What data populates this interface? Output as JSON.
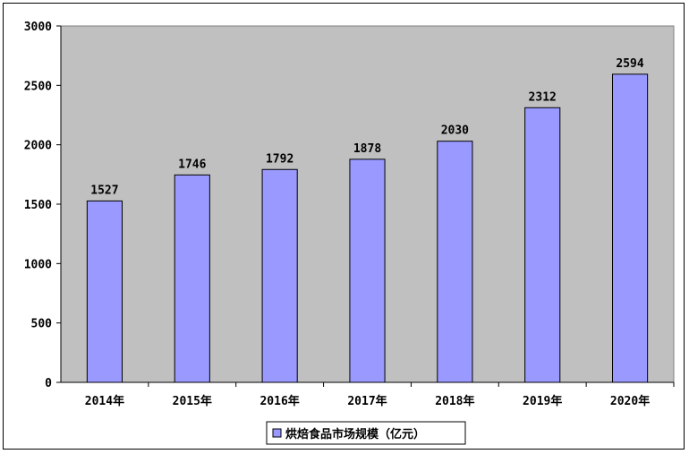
{
  "chart_data": {
    "type": "bar",
    "categories": [
      "2014年",
      "2015年",
      "2016年",
      "2017年",
      "2018年",
      "2019年",
      "2020年"
    ],
    "series": [
      {
        "name": "烘焙食品市场规模（亿元）",
        "values": [
          1527,
          1746,
          1792,
          1878,
          2030,
          2312,
          2594
        ]
      }
    ],
    "ylim": [
      0,
      3000
    ],
    "yticks": [
      0,
      500,
      1000,
      1500,
      2000,
      2500,
      3000
    ],
    "title": "",
    "xlabel": "",
    "ylabel": "",
    "grid": false,
    "legend_position": "bottom-center",
    "colors": {
      "plot_background": "#c0c0c0",
      "bar_fill": "#9999ff",
      "bar_stroke": "#000000"
    }
  }
}
